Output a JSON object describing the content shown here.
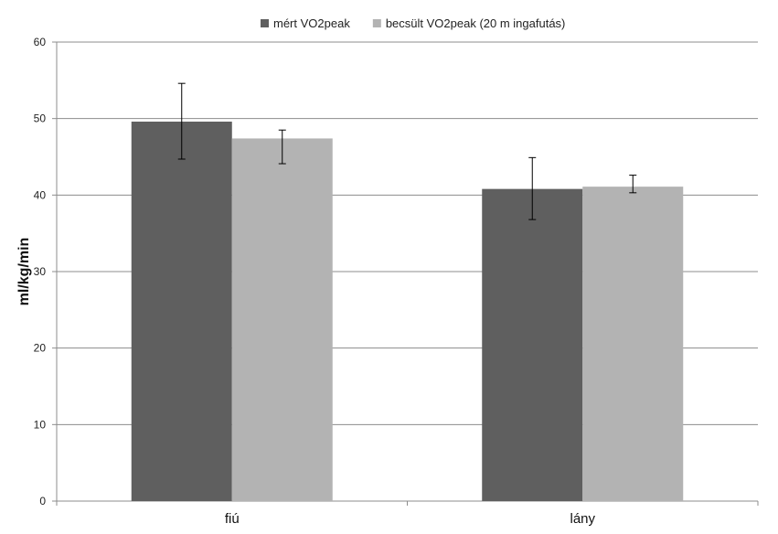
{
  "chart_data": {
    "type": "bar",
    "title": "",
    "xlabel": "",
    "ylabel": "ml/kg/min",
    "ylim": [
      0,
      60
    ],
    "yticks": [
      0,
      10,
      20,
      30,
      40,
      50,
      60
    ],
    "grid": true,
    "legend_position": "top-center",
    "categories": [
      "fiú",
      "lány"
    ],
    "series": [
      {
        "name": "mért VO2peak",
        "color": "#5f5f5f",
        "values": [
          49.6,
          40.8
        ],
        "error_low": [
          44.7,
          36.8
        ],
        "error_high": [
          54.6,
          44.9
        ]
      },
      {
        "name": "becsült VO2peak (20 m ingafutás)",
        "color": "#b3b3b3",
        "values": [
          47.4,
          41.1
        ],
        "error_low": [
          44.1,
          40.3
        ],
        "error_high": [
          48.5,
          42.6
        ]
      }
    ]
  }
}
